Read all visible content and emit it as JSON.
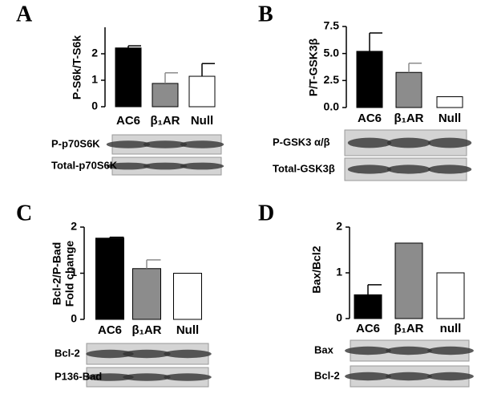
{
  "chart_data": [
    {
      "type": "bar",
      "panel": "A",
      "ylabel": [
        "P-S6k/T-S6k"
      ],
      "categories": [
        "AC6",
        "β₁AR",
        "Null"
      ],
      "values": [
        2.22,
        0.88,
        1.15
      ],
      "errors": [
        0.08,
        0.4,
        0.48
      ],
      "colors": [
        "#000000",
        "#8c8c8c",
        "#ffffff"
      ],
      "ylim": [
        0,
        3
      ],
      "yticks": [
        0,
        1,
        2
      ],
      "blot_labels": [
        "P-p70S6K",
        "Total-p70S6K"
      ]
    },
    {
      "type": "bar",
      "panel": "B",
      "ylabel": [
        "P/T-GSK3β"
      ],
      "categories": [
        "AC6",
        "β₁AR",
        "Null"
      ],
      "values": [
        5.2,
        3.25,
        1.0
      ],
      "errors": [
        1.7,
        0.85,
        null
      ],
      "colors": [
        "#000000",
        "#8c8c8c",
        "#ffffff"
      ],
      "ylim": [
        0,
        7.5
      ],
      "yticks": [
        {
          "value": 0,
          "label": "0.0"
        },
        2.5,
        {
          "value": 5,
          "label": "5.0"
        },
        7.5
      ],
      "blot_labels": [
        "P-GSK3 α/β",
        "Total-GSK3β"
      ]
    },
    {
      "type": "bar",
      "panel": "C",
      "ylabel": [
        "Bcl-2/P-Bad",
        "Fold change"
      ],
      "categories": [
        "AC6",
        "β₁AR",
        "Null"
      ],
      "values": [
        1.76,
        1.1,
        1.0
      ],
      "errors": [
        0.02,
        0.19,
        null
      ],
      "colors": [
        "#000000",
        "#8c8c8c",
        "#ffffff"
      ],
      "ylim": [
        0,
        2
      ],
      "yticks": [
        0,
        1,
        2
      ],
      "blot_labels": [
        "Bcl-2",
        "P136-Bad"
      ]
    },
    {
      "type": "bar",
      "panel": "D",
      "ylabel": [
        "Bax/Bcl2"
      ],
      "categories": [
        "AC6",
        "β₁AR",
        "null"
      ],
      "values": [
        0.52,
        1.65,
        1.0
      ],
      "errors": [
        0.22,
        null,
        null
      ],
      "colors": [
        "#000000",
        "#8c8c8c",
        "#ffffff"
      ],
      "ylim": [
        0,
        2
      ],
      "yticks": [
        0,
        1,
        2
      ],
      "blot_labels": [
        "Bax",
        "Bcl-2"
      ]
    }
  ]
}
